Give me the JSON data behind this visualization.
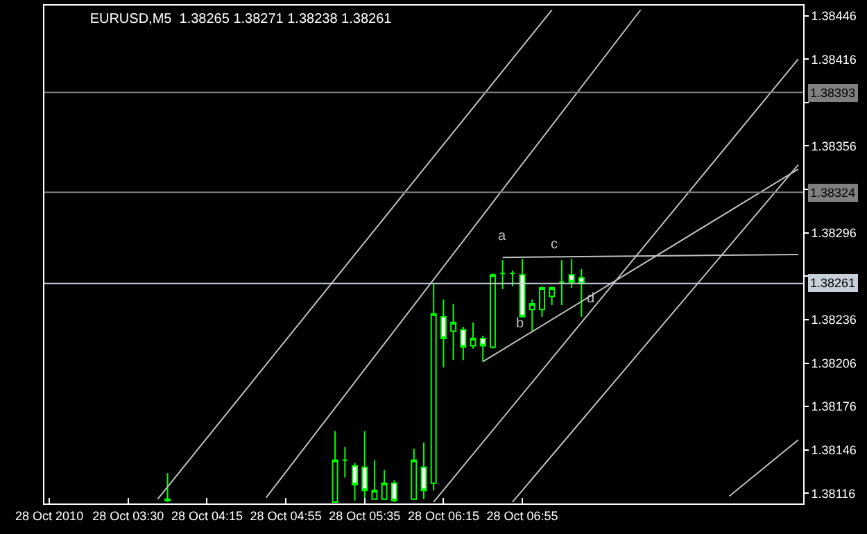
{
  "chart_data": {
    "type": "candlestick",
    "title": "EURUSD,M5  1.38265 1.38271 1.38238 1.38261",
    "categories": [
      "28 Oct 2010",
      null,
      null,
      null,
      null,
      null,
      null,
      null,
      "28 Oct 03:30",
      null,
      null,
      null,
      null,
      null,
      null,
      null,
      "28 Oct 04:15",
      null,
      null,
      null,
      null,
      null,
      null,
      null,
      "28 Oct 04:55",
      null,
      null,
      null,
      null,
      null,
      null,
      null,
      "28 Oct 05:35",
      null,
      null,
      null,
      null,
      null,
      null,
      null,
      "28 Oct 06:15",
      null,
      null,
      null,
      null,
      null,
      null,
      null,
      "28 Oct 06:55",
      null,
      null,
      null,
      null,
      null,
      null,
      null,
      null,
      null,
      null,
      null,
      null,
      null,
      null,
      null,
      null,
      null,
      null,
      null,
      null,
      null,
      null,
      null,
      null,
      null,
      null,
      null,
      null
    ],
    "ylim": [
      1.38109,
      1.38453
    ],
    "yticks": [
      1.38446,
      1.38416,
      {
        "value": 1.38386,
        "label": null
      },
      1.38356,
      {
        "value": 1.38326,
        "label": null
      },
      1.38296,
      {
        "value": 1.38266,
        "label": null
      },
      1.38236,
      1.38206,
      1.38176,
      1.38146,
      1.38116
    ],
    "grid": false,
    "series": [
      {
        "color": "#00ff00",
        "ohlc": [
          null,
          null,
          null,
          null,
          null,
          null,
          null,
          null,
          null,
          null,
          null,
          null,
          [
            1.38111,
            1.3813,
            1.3811,
            1.38112
          ],
          null,
          null,
          null,
          null,
          null,
          null,
          null,
          null,
          null,
          null,
          null,
          null,
          null,
          null,
          null,
          null,
          [
            1.3811,
            1.38159,
            1.3811,
            1.38139
          ],
          [
            1.38139,
            1.38148,
            1.38127,
            1.38139
          ],
          [
            1.38135,
            1.38137,
            1.38111,
            1.38122
          ],
          [
            1.38134,
            1.38159,
            1.38113,
            1.38118
          ],
          [
            1.38112,
            1.38139,
            1.38112,
            1.38118
          ],
          [
            1.38112,
            1.38132,
            1.38112,
            1.38123
          ],
          [
            1.38123,
            1.38125,
            1.3811,
            1.38111
          ],
          null,
          [
            1.38112,
            1.38147,
            1.38112,
            1.38139
          ],
          [
            1.38134,
            1.38151,
            1.38112,
            1.38118
          ],
          [
            1.38123,
            1.38261,
            1.38118,
            1.3824
          ],
          [
            1.38238,
            1.3825,
            1.38203,
            1.38223
          ],
          [
            1.38228,
            1.38247,
            1.38208,
            1.38234
          ],
          [
            1.38229,
            1.38231,
            1.38208,
            1.38217
          ],
          [
            1.38218,
            1.38234,
            1.38216,
            1.38223
          ],
          [
            1.38223,
            1.38225,
            1.38207,
            1.38218
          ],
          [
            1.38217,
            1.38268,
            1.38216,
            1.38267
          ],
          [
            1.38268,
            1.38277,
            1.38257,
            1.38268
          ],
          [
            1.38268,
            1.3827,
            1.38259,
            1.38268
          ],
          [
            1.38267,
            1.38278,
            1.38238,
            1.38238
          ],
          [
            1.38243,
            1.3825,
            1.38228,
            1.38247
          ],
          [
            1.38243,
            1.38259,
            1.38238,
            1.38258
          ],
          [
            1.38252,
            1.38259,
            1.38246,
            1.38258
          ],
          [
            1.38262,
            1.38277,
            1.38246,
            1.38262
          ],
          [
            1.38267,
            1.38278,
            1.38258,
            1.38262
          ],
          [
            1.38265,
            1.38271,
            1.38238,
            1.38261
          ],
          null,
          null,
          null,
          null,
          null,
          null,
          null,
          null,
          null,
          null,
          null,
          null,
          null,
          null,
          null,
          null,
          null,
          null,
          null,
          null,
          null,
          null
        ]
      },
      {
        "type": "line",
        "color": "#c0c0c0",
        "values": [
          null,
          null,
          null,
          null,
          null,
          null,
          null,
          null,
          null,
          null,
          null,
          1.38112,
          null,
          null,
          null,
          null,
          null,
          null,
          null,
          null,
          null,
          null,
          null,
          null,
          null,
          null,
          null,
          null,
          null,
          null,
          null,
          null,
          null,
          null,
          null,
          null,
          null,
          null,
          null,
          null,
          null,
          null,
          null,
          null,
          null,
          null,
          null,
          null,
          null,
          null,
          null,
          1.3845,
          null,
          null,
          null,
          null,
          null,
          null,
          null,
          null,
          null,
          null,
          null,
          null,
          null,
          null,
          null,
          null,
          null,
          null,
          null,
          null,
          null,
          null,
          null,
          null,
          null
        ]
      },
      {
        "type": "line",
        "color": "#c0c0c0",
        "values": [
          null,
          null,
          null,
          null,
          null,
          null,
          null,
          null,
          null,
          null,
          null,
          null,
          null,
          null,
          null,
          null,
          null,
          null,
          null,
          null,
          null,
          null,
          1.38113,
          null,
          null,
          null,
          null,
          null,
          null,
          null,
          null,
          null,
          null,
          null,
          null,
          null,
          null,
          null,
          null,
          null,
          null,
          null,
          null,
          null,
          null,
          null,
          null,
          null,
          null,
          null,
          null,
          null,
          null,
          null,
          null,
          null,
          null,
          null,
          null,
          null,
          1.3845,
          null,
          null,
          null,
          null,
          null,
          null,
          null,
          null,
          null,
          null,
          null,
          null,
          null,
          null,
          null,
          null
        ]
      },
      {
        "type": "line",
        "color": "#c0c0c0",
        "values": [
          null,
          null,
          null,
          null,
          null,
          null,
          null,
          null,
          null,
          null,
          null,
          null,
          null,
          null,
          null,
          null,
          null,
          null,
          null,
          null,
          null,
          null,
          null,
          null,
          null,
          null,
          null,
          null,
          null,
          null,
          null,
          null,
          null,
          null,
          null,
          null,
          null,
          null,
          null,
          1.3811,
          null,
          null,
          null,
          null,
          null,
          null,
          null,
          null,
          null,
          null,
          null,
          null,
          null,
          null,
          null,
          null,
          null,
          null,
          null,
          null,
          null,
          null,
          null,
          null,
          null,
          null,
          null,
          null,
          null,
          null,
          null,
          null,
          null,
          null,
          null,
          null,
          1.38416
        ]
      },
      {
        "type": "line",
        "color": "#c0c0c0",
        "values": [
          null,
          null,
          null,
          null,
          null,
          null,
          null,
          null,
          null,
          null,
          null,
          null,
          null,
          null,
          null,
          null,
          null,
          null,
          null,
          null,
          null,
          null,
          null,
          null,
          null,
          null,
          null,
          null,
          null,
          null,
          null,
          null,
          null,
          null,
          null,
          null,
          null,
          null,
          null,
          null,
          null,
          null,
          null,
          null,
          null,
          null,
          null,
          1.3811,
          null,
          null,
          null,
          null,
          null,
          null,
          null,
          null,
          null,
          null,
          null,
          null,
          null,
          null,
          null,
          null,
          null,
          null,
          null,
          null,
          null,
          null,
          null,
          null,
          null,
          null,
          null,
          null,
          1.38343
        ]
      },
      {
        "type": "line",
        "color": "#c0c0c0",
        "values": [
          null,
          null,
          null,
          null,
          null,
          null,
          null,
          null,
          null,
          null,
          null,
          null,
          null,
          null,
          null,
          null,
          null,
          null,
          null,
          null,
          null,
          null,
          null,
          null,
          null,
          null,
          null,
          null,
          null,
          null,
          null,
          null,
          null,
          null,
          null,
          null,
          null,
          null,
          null,
          null,
          null,
          null,
          null,
          null,
          null,
          null,
          null,
          null,
          null,
          null,
          null,
          null,
          null,
          null,
          null,
          null,
          null,
          null,
          null,
          null,
          null,
          null,
          null,
          null,
          null,
          null,
          null,
          null,
          null,
          1.38114,
          null,
          null,
          null,
          null,
          null,
          null,
          1.38153
        ]
      },
      {
        "type": "line",
        "color": "#c0c0c0",
        "values": [
          null,
          null,
          null,
          null,
          null,
          null,
          null,
          null,
          null,
          null,
          null,
          null,
          null,
          null,
          null,
          null,
          null,
          null,
          null,
          null,
          null,
          null,
          null,
          null,
          null,
          null,
          null,
          null,
          null,
          null,
          null,
          null,
          null,
          null,
          null,
          null,
          null,
          null,
          null,
          null,
          null,
          null,
          null,
          null,
          1.38207,
          null,
          null,
          null,
          null,
          null,
          null,
          null,
          null,
          null,
          null,
          null,
          null,
          null,
          null,
          null,
          null,
          null,
          null,
          null,
          null,
          null,
          null,
          null,
          null,
          null,
          null,
          null,
          null,
          null,
          null,
          null,
          1.3834
        ]
      },
      {
        "type": "line",
        "color": "#c0c0c0",
        "values": [
          null,
          null,
          null,
          null,
          null,
          null,
          null,
          null,
          null,
          null,
          null,
          null,
          null,
          null,
          null,
          null,
          null,
          null,
          null,
          null,
          null,
          null,
          null,
          null,
          null,
          null,
          null,
          null,
          null,
          null,
          null,
          null,
          null,
          null,
          null,
          null,
          null,
          null,
          null,
          null,
          null,
          null,
          null,
          null,
          null,
          null,
          1.38279,
          null,
          null,
          null,
          null,
          null,
          null,
          null,
          null,
          null,
          null,
          null,
          null,
          null,
          null,
          null,
          null,
          null,
          null,
          null,
          null,
          null,
          null,
          null,
          null,
          null,
          null,
          null,
          null,
          null,
          1.38281
        ]
      }
    ],
    "ref_lines": [
      {
        "axis": "y",
        "value": 1.38393,
        "label": "1.38393",
        "color": "#808080"
      },
      {
        "axis": "y",
        "value": 1.38324,
        "label": "1.38324",
        "color": "#808080"
      },
      {
        "axis": "y",
        "value": 1.38261,
        "label": "1.38261",
        "color": "#c8d0dc"
      }
    ],
    "annotations": [
      "a",
      "b",
      "c",
      "d"
    ]
  }
}
